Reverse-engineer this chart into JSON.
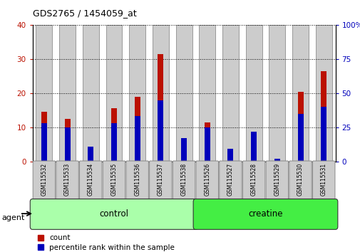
{
  "title": "GDS2765 / 1454059_at",
  "categories": [
    "GSM115532",
    "GSM115533",
    "GSM115534",
    "GSM115535",
    "GSM115536",
    "GSM115537",
    "GSM115538",
    "GSM115526",
    "GSM115527",
    "GSM115528",
    "GSM115529",
    "GSM115530",
    "GSM115531"
  ],
  "count_values": [
    14.5,
    12.5,
    2.5,
    15.5,
    19.0,
    31.5,
    0.5,
    11.5,
    2.0,
    8.0,
    0.2,
    20.5,
    26.5
  ],
  "percentile_values": [
    28,
    25,
    11,
    28,
    33,
    45,
    17,
    25,
    9,
    22,
    2,
    35,
    40
  ],
  "groups": [
    {
      "label": "control",
      "start": 0,
      "end": 7,
      "color": "#aaffaa"
    },
    {
      "label": "creatine",
      "start": 7,
      "end": 13,
      "color": "#44ee44"
    }
  ],
  "ylim_left": [
    0,
    40
  ],
  "ylim_right": [
    0,
    100
  ],
  "yticks_left": [
    0,
    10,
    20,
    30,
    40
  ],
  "yticks_right": [
    0,
    25,
    50,
    75,
    100
  ],
  "count_color": "#bb1100",
  "percentile_color": "#0000bb",
  "bar_face_color": "#cccccc",
  "bar_edge_color": "#999999",
  "agent_label": "agent",
  "legend_count": "count",
  "legend_percentile": "percentile rank within the sample"
}
